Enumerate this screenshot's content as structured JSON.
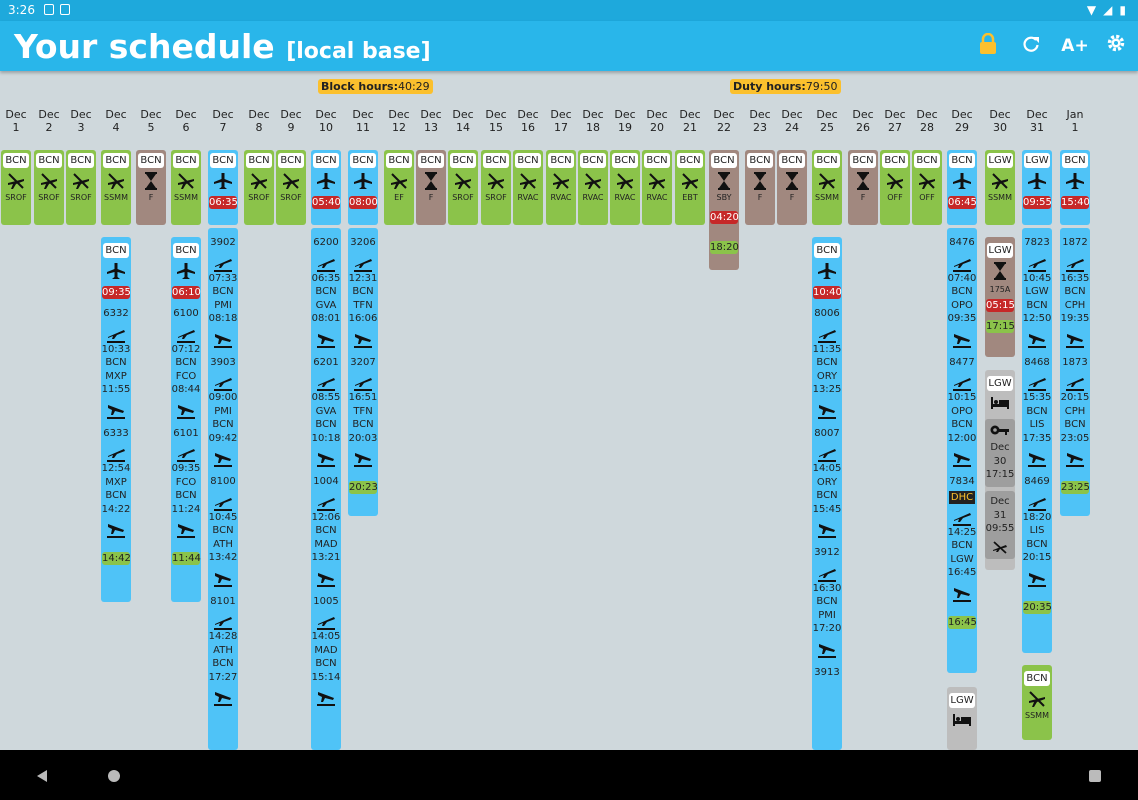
{
  "status_bar": {
    "time": "3:26"
  },
  "app": {
    "title": "Your schedule",
    "subtitle": "[local base]",
    "icons": [
      "lock-icon",
      "refresh-icon",
      "font-size-icon",
      "settings-icon"
    ],
    "font_button": "A+"
  },
  "totals": {
    "block_label": "Block hours:",
    "block_value": "40:29",
    "duty_label": "Duty hours:",
    "duty_value": "79:50"
  },
  "days": [
    {
      "m": "Dec",
      "d": "1"
    },
    {
      "m": "Dec",
      "d": "2"
    },
    {
      "m": "Dec",
      "d": "3"
    },
    {
      "m": "Dec",
      "d": "4"
    },
    {
      "m": "Dec",
      "d": "5"
    },
    {
      "m": "Dec",
      "d": "6"
    },
    {
      "m": "Dec",
      "d": "7"
    },
    {
      "m": "Dec",
      "d": "8"
    },
    {
      "m": "Dec",
      "d": "9"
    },
    {
      "m": "Dec",
      "d": "10"
    },
    {
      "m": "Dec",
      "d": "11"
    },
    {
      "m": "Dec",
      "d": "12"
    },
    {
      "m": "Dec",
      "d": "13"
    },
    {
      "m": "Dec",
      "d": "14"
    },
    {
      "m": "Dec",
      "d": "15"
    },
    {
      "m": "Dec",
      "d": "16"
    },
    {
      "m": "Dec",
      "d": "17"
    },
    {
      "m": "Dec",
      "d": "18"
    },
    {
      "m": "Dec",
      "d": "19"
    },
    {
      "m": "Dec",
      "d": "20"
    },
    {
      "m": "Dec",
      "d": "21"
    },
    {
      "m": "Dec",
      "d": "22"
    },
    {
      "m": "Dec",
      "d": "23"
    },
    {
      "m": "Dec",
      "d": "24"
    },
    {
      "m": "Dec",
      "d": "25"
    },
    {
      "m": "Dec",
      "d": "26"
    },
    {
      "m": "Dec",
      "d": "27"
    },
    {
      "m": "Dec",
      "d": "28"
    },
    {
      "m": "Dec",
      "d": "29"
    },
    {
      "m": "Dec",
      "d": "30"
    },
    {
      "m": "Dec",
      "d": "31"
    },
    {
      "m": "Jan",
      "d": "1"
    }
  ],
  "top_row": [
    {
      "stn": "BCN",
      "code": "SROF",
      "kind": "off"
    },
    {
      "stn": "BCN",
      "code": "SROF",
      "kind": "off"
    },
    {
      "stn": "BCN",
      "code": "SROF",
      "kind": "off"
    },
    {
      "stn": "BCN",
      "code": "SSMM",
      "kind": "off"
    },
    {
      "stn": "BCN",
      "code": "F",
      "kind": "standby"
    },
    {
      "stn": "BCN",
      "code": "SSMM",
      "kind": "off"
    },
    {
      "stn": "BCN",
      "time": "06:35",
      "kind": "flight"
    },
    {
      "stn": "BCN",
      "code": "SROF",
      "kind": "off"
    },
    {
      "stn": "BCN",
      "code": "SROF",
      "kind": "off"
    },
    {
      "stn": "BCN",
      "time": "05:40",
      "kind": "flight"
    },
    {
      "stn": "BCN",
      "time": "08:00",
      "kind": "flight"
    },
    {
      "stn": "BCN",
      "code": "EF",
      "kind": "off"
    },
    {
      "stn": "BCN",
      "code": "F",
      "kind": "standby"
    },
    {
      "stn": "BCN",
      "code": "SROF",
      "kind": "off"
    },
    {
      "stn": "BCN",
      "code": "SROF",
      "kind": "off"
    },
    {
      "stn": "BCN",
      "code": "RVAC",
      "kind": "off"
    },
    {
      "stn": "BCN",
      "code": "RVAC",
      "kind": "off"
    },
    {
      "stn": "BCN",
      "code": "RVAC",
      "kind": "off"
    },
    {
      "stn": "BCN",
      "code": "RVAC",
      "kind": "off"
    },
    {
      "stn": "BCN",
      "code": "RVAC",
      "kind": "off"
    },
    {
      "stn": "BCN",
      "code": "EBT",
      "kind": "off"
    },
    {
      "stn": "BCN",
      "code": "SBY",
      "kind": "sby",
      "start": "04:20",
      "end": "18:20"
    },
    {
      "stn": "BCN",
      "code": "F",
      "kind": "standby"
    },
    {
      "stn": "BCN",
      "code": "F",
      "kind": "standby"
    },
    {
      "stn": "BCN",
      "code": "SSMM",
      "kind": "off"
    },
    {
      "stn": "BCN",
      "code": "F",
      "kind": "standby"
    },
    {
      "stn": "BCN",
      "code": "OFF",
      "kind": "off"
    },
    {
      "stn": "BCN",
      "code": "OFF",
      "kind": "off"
    },
    {
      "stn": "BCN",
      "time": "06:45",
      "kind": "flight"
    },
    {
      "stn": "LGW",
      "code": "SSMM",
      "kind": "off"
    },
    {
      "stn": "LGW",
      "time": "09:55",
      "kind": "flight"
    },
    {
      "stn": "BCN",
      "time": "15:40",
      "kind": "flight"
    }
  ],
  "flights": {
    "dec4": {
      "stn": "BCN",
      "report": "09:35",
      "legs": [
        {
          "no": "6332",
          "dep": "10:33",
          "from": "BCN",
          "to": "MXP",
          "arr": "11:55"
        },
        {
          "no": "6333",
          "dep": "12:54",
          "from": "MXP",
          "to": "BCN",
          "arr": "14:22"
        }
      ],
      "end": "14:42"
    },
    "dec6": {
      "stn": "BCN",
      "report": "06:10",
      "legs": [
        {
          "no": "6100",
          "dep": "07:12",
          "from": "BCN",
          "to": "FCO",
          "arr": "08:44"
        },
        {
          "no": "6101",
          "dep": "09:35",
          "from": "FCO",
          "to": "BCN",
          "arr": "11:24"
        }
      ],
      "end": "11:44"
    },
    "dec7": {
      "legs": [
        {
          "no": "3902",
          "dep": "07:33",
          "from": "BCN",
          "to": "PMI",
          "arr": "08:18"
        },
        {
          "no": "3903",
          "dep": "09:00",
          "from": "PMI",
          "to": "BCN",
          "arr": "09:42"
        },
        {
          "no": "8100",
          "dep": "10:45",
          "from": "BCN",
          "to": "ATH",
          "arr": "13:42"
        },
        {
          "no": "8101",
          "dep": "14:28",
          "from": "ATH",
          "to": "BCN",
          "arr": "17:27"
        }
      ]
    },
    "dec10": {
      "legs": [
        {
          "no": "6200",
          "dep": "06:35",
          "from": "BCN",
          "to": "GVA",
          "arr": "08:01"
        },
        {
          "no": "6201",
          "dep": "08:55",
          "from": "GVA",
          "to": "BCN",
          "arr": "10:18"
        },
        {
          "no": "1004",
          "dep": "12:06",
          "from": "BCN",
          "to": "MAD",
          "arr": "13:21"
        },
        {
          "no": "1005",
          "dep": "14:05",
          "from": "MAD",
          "to": "BCN",
          "arr": "15:14"
        }
      ]
    },
    "dec11": {
      "legs": [
        {
          "no": "3206",
          "dep": "12:31",
          "from": "BCN",
          "to": "TFN",
          "arr": "16:06"
        },
        {
          "no": "3207",
          "dep": "16:51",
          "from": "TFN",
          "to": "BCN",
          "arr": "20:03"
        }
      ],
      "end": "20:23"
    },
    "dec25": {
      "stn": "BCN",
      "report": "10:40",
      "legs": [
        {
          "no": "8006",
          "dep": "11:35",
          "from": "BCN",
          "to": "ORY",
          "arr": "13:25"
        },
        {
          "no": "8007",
          "dep": "14:05",
          "from": "ORY",
          "to": "BCN",
          "arr": "15:45"
        },
        {
          "no": "3912",
          "dep": "16:30",
          "from": "BCN",
          "to": "PMI",
          "arr": "17:20"
        },
        {
          "no": "3913"
        }
      ]
    },
    "dec29": {
      "legs": [
        {
          "no": "8476",
          "dep": "07:40",
          "from": "BCN",
          "to": "OPO",
          "arr": "09:35"
        },
        {
          "no": "8477",
          "dep": "10:15",
          "from": "OPO",
          "to": "BCN",
          "arr": "12:00"
        },
        {
          "no": "7834",
          "dhc": "DHC",
          "dep": "14:25",
          "from": "BCN",
          "to": "LGW",
          "arr": "16:45"
        }
      ],
      "end": "16:45",
      "hotel_stn": "LGW"
    },
    "dec30": {
      "sby_stn": "LGW",
      "sby_code": "175A",
      "sby_start": "05:15",
      "sby_end": "17:15",
      "hotel_stn": "LGW",
      "key_date": "Dec\n30",
      "key_time": "17:15",
      "out_date": "Dec\n31",
      "out_time": "09:55"
    },
    "dec31": {
      "legs": [
        {
          "no": "7823",
          "dep": "10:45",
          "from": "LGW",
          "to": "BCN",
          "arr": "12:50"
        },
        {
          "no": "8468",
          "dep": "15:35",
          "from": "BCN",
          "to": "LIS",
          "arr": "17:35"
        },
        {
          "no": "8469",
          "dep": "18:20",
          "from": "LIS",
          "to": "BCN",
          "arr": "20:15"
        }
      ],
      "end": "20:35",
      "after_stn": "BCN",
      "after_code": "SSMM"
    },
    "jan1": {
      "legs": [
        {
          "no": "1872",
          "dep": "16:35",
          "from": "BCN",
          "to": "CPH",
          "arr": "19:35"
        },
        {
          "no": "1873",
          "dep": "20:15",
          "from": "CPH",
          "to": "BCN",
          "arr": "23:05"
        }
      ],
      "end": "23:25"
    }
  },
  "colors": {
    "off": "#8bc34a",
    "standby": "#a1887f",
    "flight": "#4fc3f7",
    "red": "#c62828",
    "appbar": "#29b6ea"
  }
}
